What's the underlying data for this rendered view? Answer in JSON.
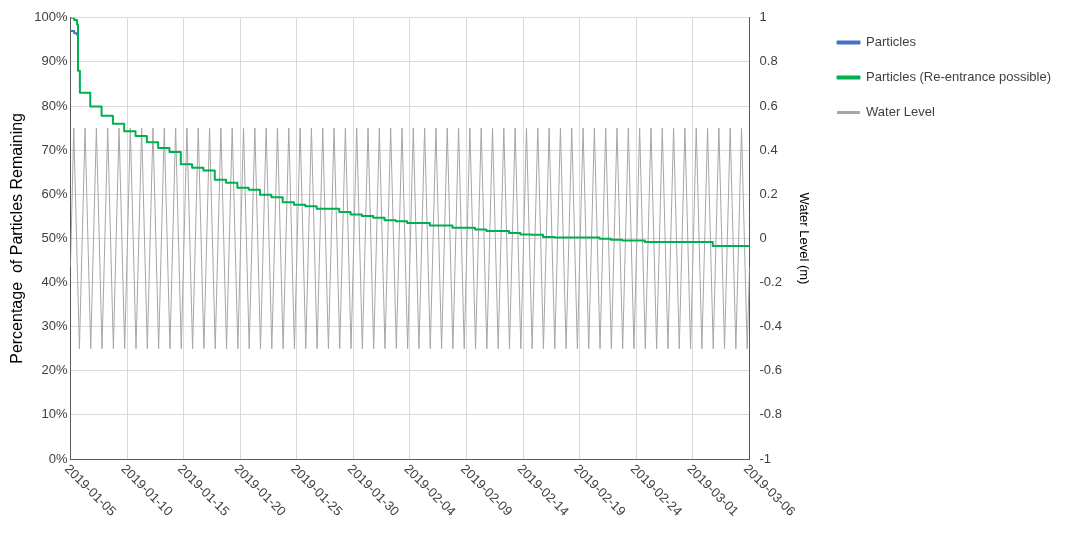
{
  "chart_data": {
    "type": "line",
    "ylabel": "Percentage  of Particles Remaining",
    "y2label": "Water Level (m)",
    "xlim": [
      "2019-01-05",
      "2019-03-06"
    ],
    "xticks": [
      "2019-01-05",
      "2019-01-10",
      "2019-01-15",
      "2019-01-20",
      "2019-01-25",
      "2019-01-30",
      "2019-02-04",
      "2019-02-09",
      "2019-02-14",
      "2019-02-19",
      "2019-02-24",
      "2019-03-01",
      "2019-03-06"
    ],
    "ylim": [
      0,
      100
    ],
    "yticks": [
      {
        "value": 0,
        "label": "0%"
      },
      {
        "value": 10,
        "label": "10%"
      },
      {
        "value": 20,
        "label": "20%"
      },
      {
        "value": 30,
        "label": "30%"
      },
      {
        "value": 40,
        "label": "40%"
      },
      {
        "value": 50,
        "label": "50%"
      },
      {
        "value": 60,
        "label": "60%"
      },
      {
        "value": 70,
        "label": "70%"
      },
      {
        "value": 80,
        "label": "80%"
      },
      {
        "value": 90,
        "label": "90%"
      },
      {
        "value": 100,
        "label": "100%"
      }
    ],
    "y2lim": [
      -1,
      1
    ],
    "y2ticks": [
      -1,
      -0.8,
      -0.6,
      -0.4,
      -0.2,
      0,
      0.2,
      0.4,
      0.6,
      0.8,
      1
    ],
    "grid": true,
    "legend": "right",
    "marker": "none",
    "line_style": "solid",
    "series": [
      {
        "name": "Particles",
        "type": "step",
        "color": "#4472c4",
        "x": [
          "2019-01-05T00:00",
          "2019-01-05T08:00",
          "2019-01-05T14:00"
        ],
        "values": [
          97,
          96.5,
          96
        ]
      },
      {
        "name": "Particles (Re-entrance possible)",
        "type": "step",
        "color": "#00b050",
        "x": [
          "2019-01-05T00:00",
          "2019-01-05T08:00",
          "2019-01-05T14:00",
          "2019-01-05T16:00",
          "2019-01-05T20:00",
          "2019-01-06T18:00",
          "2019-01-07T18:00",
          "2019-01-08T18:00",
          "2019-01-09T18:00",
          "2019-01-10T18:00",
          "2019-01-11T18:00",
          "2019-01-12T18:00",
          "2019-01-13T18:00",
          "2019-01-14T18:00",
          "2019-01-15T18:00",
          "2019-01-16T18:00",
          "2019-01-17T18:00",
          "2019-01-18T18:00",
          "2019-01-19T18:00",
          "2019-01-20T18:00",
          "2019-01-21T18:00",
          "2019-01-22T18:00",
          "2019-01-23T18:00",
          "2019-01-24T18:00",
          "2019-01-25T18:00",
          "2019-01-26T18:00",
          "2019-01-28T18:00",
          "2019-01-29T18:00",
          "2019-01-30T18:00",
          "2019-01-31T18:00",
          "2019-02-01T18:00",
          "2019-02-02T18:00",
          "2019-02-03T18:00",
          "2019-02-05T18:00",
          "2019-02-07T18:00",
          "2019-02-09T18:00",
          "2019-02-10T18:00",
          "2019-02-12T18:00",
          "2019-02-13T18:00",
          "2019-02-14T18:00",
          "2019-02-15T18:00",
          "2019-02-16T18:00",
          "2019-02-20T18:00",
          "2019-02-21T18:00",
          "2019-02-22T18:00",
          "2019-02-24T18:00",
          "2019-03-02T18:00",
          "2019-03-06T00:00"
        ],
        "values": [
          100,
          99.5,
          98.5,
          88,
          83,
          79.9,
          77.8,
          76,
          74.3,
          73.2,
          71.8,
          70.5,
          69.6,
          66.8,
          66,
          65.4,
          63.3,
          62.6,
          61.5,
          61,
          59.9,
          59.3,
          58.2,
          57.6,
          57.3,
          56.7,
          56,
          55.4,
          55.1,
          54.7,
          54.1,
          53.9,
          53.5,
          52.9,
          52.4,
          52,
          51.7,
          51.2,
          50.9,
          50.8,
          50.3,
          50.2,
          49.9,
          49.7,
          49.5,
          49.2,
          48.3,
          48.2
        ]
      },
      {
        "name": "Water Level",
        "type": "line",
        "axis": "y2",
        "color": "#a6a6a6",
        "x": [
          "2019-01-05T00:00",
          "2019-01-05T07:00",
          "2019-01-05T19:00",
          "2019-01-06T07:00",
          "2019-01-06T19:00",
          "2019-01-07T07:00",
          "2019-01-07T19:00",
          "2019-01-08T07:00",
          "2019-01-08T19:00",
          "2019-01-09T07:00",
          "2019-01-09T19:00",
          "2019-01-10T07:00",
          "2019-01-10T19:00",
          "2019-01-11T07:00",
          "2019-01-11T19:00",
          "2019-01-12T07:00",
          "2019-01-12T19:00",
          "2019-01-13T07:00",
          "2019-01-13T19:00",
          "2019-01-14T07:00",
          "2019-01-14T19:00",
          "2019-01-15T07:00",
          "2019-01-15T19:00",
          "2019-01-16T07:00",
          "2019-01-16T19:00",
          "2019-01-17T07:00",
          "2019-01-17T19:00",
          "2019-01-18T07:00",
          "2019-01-18T19:00",
          "2019-01-19T07:00",
          "2019-01-19T19:00",
          "2019-01-20T07:00",
          "2019-01-20T19:00",
          "2019-01-21T07:00",
          "2019-01-21T19:00",
          "2019-01-22T07:00",
          "2019-01-22T19:00",
          "2019-01-23T07:00",
          "2019-01-23T19:00",
          "2019-01-24T07:00",
          "2019-01-24T19:00",
          "2019-01-25T07:00",
          "2019-01-25T19:00",
          "2019-01-26T07:00",
          "2019-01-26T19:00",
          "2019-01-27T07:00",
          "2019-01-27T19:00",
          "2019-01-28T07:00",
          "2019-01-28T19:00",
          "2019-01-29T07:00",
          "2019-01-29T19:00",
          "2019-01-30T07:00",
          "2019-01-30T19:00",
          "2019-01-31T07:00",
          "2019-01-31T19:00",
          "2019-02-01T07:00",
          "2019-02-01T19:00",
          "2019-02-02T07:00",
          "2019-02-02T19:00",
          "2019-02-03T07:00",
          "2019-02-03T19:00",
          "2019-02-04T07:00",
          "2019-02-04T19:00",
          "2019-02-05T07:00",
          "2019-02-05T19:00",
          "2019-02-06T07:00",
          "2019-02-06T19:00",
          "2019-02-07T07:00",
          "2019-02-07T19:00",
          "2019-02-08T07:00",
          "2019-02-08T19:00",
          "2019-02-09T07:00",
          "2019-02-09T19:00",
          "2019-02-10T07:00",
          "2019-02-10T19:00",
          "2019-02-11T07:00",
          "2019-02-11T19:00",
          "2019-02-12T07:00",
          "2019-02-12T19:00",
          "2019-02-13T07:00",
          "2019-02-13T19:00",
          "2019-02-14T07:00",
          "2019-02-14T19:00",
          "2019-02-15T07:00",
          "2019-02-15T19:00",
          "2019-02-16T07:00",
          "2019-02-16T19:00",
          "2019-02-17T07:00",
          "2019-02-17T19:00",
          "2019-02-18T07:00",
          "2019-02-18T19:00",
          "2019-02-19T07:00",
          "2019-02-19T19:00",
          "2019-02-20T07:00",
          "2019-02-20T19:00",
          "2019-02-21T07:00",
          "2019-02-21T19:00",
          "2019-02-22T07:00",
          "2019-02-22T19:00",
          "2019-02-23T07:00",
          "2019-02-23T19:00",
          "2019-02-24T07:00",
          "2019-02-24T19:00",
          "2019-02-25T07:00",
          "2019-02-25T19:00",
          "2019-02-26T07:00",
          "2019-02-26T19:00",
          "2019-02-27T07:00",
          "2019-02-27T19:00",
          "2019-02-28T07:00",
          "2019-02-28T19:00",
          "2019-03-01T07:00",
          "2019-03-01T19:00",
          "2019-03-02T07:00",
          "2019-03-02T19:00",
          "2019-03-03T07:00",
          "2019-03-03T19:00",
          "2019-03-04T07:00",
          "2019-03-04T19:00",
          "2019-03-05T07:00",
          "2019-03-05T19:00",
          "2019-03-06T00:00"
        ],
        "values": [
          -0.13,
          0.5,
          -0.5,
          0.5,
          -0.5,
          0.5,
          -0.5,
          0.5,
          -0.5,
          0.5,
          -0.5,
          0.5,
          -0.5,
          0.5,
          -0.5,
          0.5,
          -0.5,
          0.5,
          -0.5,
          0.5,
          -0.5,
          0.5,
          -0.5,
          0.5,
          -0.5,
          0.5,
          -0.5,
          0.5,
          -0.5,
          0.5,
          -0.5,
          0.5,
          -0.5,
          0.5,
          -0.5,
          0.5,
          -0.5,
          0.5,
          -0.5,
          0.5,
          -0.5,
          0.5,
          -0.5,
          0.5,
          -0.5,
          0.5,
          -0.5,
          0.5,
          -0.5,
          0.5,
          -0.5,
          0.5,
          -0.5,
          0.5,
          -0.5,
          0.5,
          -0.5,
          0.5,
          -0.5,
          0.5,
          -0.5,
          0.5,
          -0.5,
          0.5,
          -0.5,
          0.5,
          -0.5,
          0.5,
          -0.5,
          0.5,
          -0.5,
          0.5,
          -0.5,
          0.5,
          -0.5,
          0.5,
          -0.5,
          0.5,
          -0.5,
          0.5,
          -0.5,
          0.5,
          -0.5,
          0.5,
          -0.5,
          0.5,
          -0.5,
          0.5,
          -0.5,
          0.5,
          -0.5,
          0.5,
          -0.5,
          0.5,
          -0.5,
          0.5,
          -0.5,
          0.5,
          -0.5,
          0.5,
          -0.5,
          0.5,
          -0.5,
          0.5,
          -0.5,
          0.5,
          -0.5,
          0.5,
          -0.5,
          0.5,
          -0.5,
          0.5,
          -0.5,
          0.5,
          -0.5,
          0.5,
          -0.5,
          0.5,
          -0.5,
          0.5,
          -0.5,
          -0.13
        ]
      }
    ]
  }
}
